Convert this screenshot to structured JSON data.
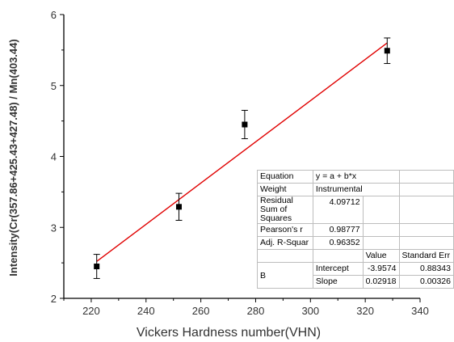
{
  "chart_data": {
    "type": "scatter",
    "title": "",
    "xlabel": "Vickers Hardness number(VHN)",
    "ylabel": "Intensity(Cr(357.86+425.43+427.48) / Mn(403.44)",
    "xlim": [
      210,
      340
    ],
    "ylim": [
      2,
      6
    ],
    "x_ticks": [
      220,
      240,
      260,
      280,
      300,
      320,
      340
    ],
    "y_ticks": [
      2,
      3,
      4,
      5,
      6
    ],
    "grid": false,
    "series": [
      {
        "x": [
          222,
          252,
          276,
          328
        ],
        "y": [
          2.45,
          3.29,
          4.45,
          5.49
        ],
        "err_low": [
          2.28,
          3.1,
          4.25,
          5.31
        ],
        "err_high": [
          2.62,
          3.48,
          4.65,
          5.67
        ],
        "marker": "square",
        "color": "#000000"
      }
    ],
    "fit_line": {
      "x": [
        222,
        328
      ],
      "y": [
        2.52,
        5.6
      ],
      "color": "#e00000"
    }
  },
  "fit_table": {
    "equation_label": "Equation",
    "equation_value": "y = a + b*x",
    "weight_label": "Weight",
    "weight_value": "Instrumental",
    "rss_label": "Residual Sum of Squares",
    "rss_value": "4.09712",
    "pearson_label": "Pearson's r",
    "pearson_value": "0.98777",
    "adjr_label": "Adj. R-Squar",
    "adjr_value": "0.96352",
    "col_value": "Value",
    "col_stderr": "Standard Err",
    "param_group": "B",
    "intercept_label": "Intercept",
    "intercept_value": "-3.9574",
    "intercept_err": "0.88343",
    "slope_label": "Slope",
    "slope_value": "0.02918",
    "slope_err": "0.00326"
  }
}
